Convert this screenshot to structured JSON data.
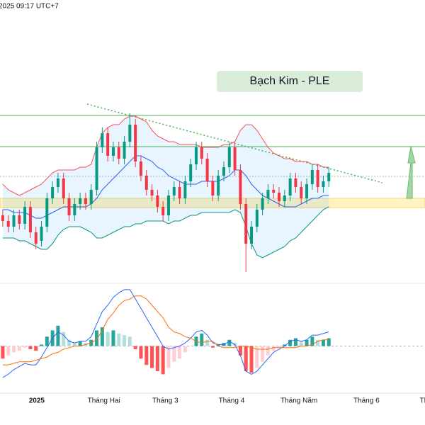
{
  "chart_data": [
    {
      "type": "candlestick",
      "title": "Bạch Kim - PLE",
      "timestamp": "2025 09:17 UTC+7",
      "xlim": [
        -0.5,
        76.4
      ],
      "xticks": [
        {
          "value": 6.15,
          "label": "2025"
        },
        {
          "value": 18.3,
          "label": "Tháng Hai"
        },
        {
          "value": 29.4,
          "label": "Tháng 3"
        },
        {
          "value": 41.4,
          "label": "Tháng 4"
        },
        {
          "value": 53.6,
          "label": "Tháng Năm"
        },
        {
          "value": 65.8,
          "label": "Tháng 6"
        },
        {
          "value": 76.2,
          "label": "Th"
        }
      ],
      "ylim": [
        0,
        100
      ],
      "up_color": "#089981",
      "down_color": "#f23645",
      "open": [
        24,
        22,
        20,
        24,
        21,
        27,
        18,
        15,
        20,
        30,
        34,
        37,
        30,
        24,
        28,
        30,
        28,
        33,
        48,
        53,
        45,
        48,
        44,
        50,
        56,
        43,
        38,
        33,
        31,
        27,
        24,
        31,
        34,
        30,
        36,
        42,
        48,
        44,
        36,
        31,
        38,
        41,
        48,
        40,
        28,
        14,
        20,
        26,
        30,
        33,
        32,
        29,
        31,
        37,
        34,
        30,
        35,
        40,
        34,
        36
      ],
      "high": [
        26,
        24,
        26,
        26,
        29,
        29,
        20,
        22,
        32,
        36,
        39,
        39,
        32,
        30,
        32,
        32,
        35,
        50,
        55,
        55,
        50,
        50,
        52,
        60,
        58,
        45,
        40,
        35,
        33,
        29,
        33,
        36,
        36,
        38,
        44,
        50,
        50,
        46,
        38,
        40,
        43,
        50,
        50,
        42,
        30,
        22,
        28,
        32,
        35,
        35,
        34,
        33,
        39,
        39,
        36,
        37,
        42,
        42,
        38,
        41
      ],
      "low": [
        20,
        18,
        18,
        19,
        19,
        16,
        12,
        13,
        18,
        28,
        32,
        28,
        22,
        22,
        26,
        26,
        26,
        31,
        46,
        43,
        43,
        42,
        42,
        48,
        41,
        36,
        31,
        29,
        25,
        22,
        22,
        29,
        28,
        28,
        34,
        40,
        42,
        34,
        29,
        29,
        36,
        39,
        38,
        26,
        4,
        12,
        18,
        24,
        28,
        30,
        27,
        27,
        29,
        32,
        28,
        28,
        33,
        32,
        32,
        34
      ],
      "close": [
        22,
        20,
        24,
        21,
        27,
        18,
        14,
        20,
        30,
        34,
        37,
        30,
        24,
        28,
        30,
        28,
        33,
        48,
        53,
        45,
        48,
        44,
        50,
        56,
        43,
        38,
        33,
        31,
        27,
        24,
        31,
        34,
        30,
        36,
        42,
        48,
        44,
        36,
        31,
        38,
        41,
        48,
        40,
        28,
        14,
        20,
        26,
        30,
        33,
        32,
        29,
        31,
        37,
        34,
        30,
        35,
        40,
        34,
        36,
        39
      ],
      "bands": {
        "upper": [
          35,
          33,
          32,
          31,
          32,
          33,
          34,
          35,
          37,
          39,
          40,
          40,
          40,
          40,
          41,
          41,
          42,
          48,
          53,
          55,
          56,
          56,
          58,
          59,
          59,
          58,
          57,
          54,
          52,
          51,
          50,
          50,
          49,
          49,
          49,
          49,
          48,
          48,
          48,
          48,
          49,
          49,
          50,
          54,
          56,
          56,
          54,
          51,
          48,
          46,
          45,
          44,
          44,
          43,
          43,
          43,
          42,
          42,
          41,
          41
        ],
        "middle": [
          26,
          26,
          25,
          25,
          25,
          24,
          23,
          23,
          24,
          25,
          26,
          27,
          27,
          27,
          27,
          27,
          28,
          30,
          33,
          35,
          37,
          39,
          41,
          43,
          45,
          45,
          44,
          43,
          41,
          40,
          38,
          37,
          36,
          35,
          35,
          35,
          36,
          36,
          36,
          36,
          37,
          38,
          40,
          40,
          38,
          35,
          33,
          31,
          30,
          29,
          28,
          27,
          27,
          27,
          28,
          29,
          30,
          30,
          31,
          31
        ],
        "lower": [
          16,
          16,
          16,
          15,
          15,
          14,
          13,
          12,
          12,
          14,
          17,
          19,
          20,
          20,
          20,
          19,
          18,
          16,
          16,
          17,
          18,
          19,
          20,
          20,
          21,
          21,
          22,
          22,
          22,
          22,
          21,
          22,
          22,
          23,
          24,
          24,
          25,
          25,
          25,
          25,
          25,
          25,
          26,
          25,
          20,
          14,
          10,
          9,
          10,
          11,
          12,
          13,
          15,
          16,
          18,
          20,
          22,
          24,
          26,
          27
        ]
      },
      "band_colors": {
        "upper": "#f7525f",
        "middle": "#2962ff",
        "lower": "#089981",
        "fill": "#2196f3"
      }
    },
    {
      "type": "macd",
      "ylim": [
        -30,
        40
      ],
      "macd": [
        -20,
        -18,
        -15,
        -13,
        -11,
        -12,
        -12,
        -7,
        -1,
        5,
        9,
        7,
        3,
        2,
        3,
        3,
        6,
        14,
        22,
        26,
        31,
        34,
        36,
        36,
        30,
        24,
        18,
        12,
        6,
        0,
        -2,
        -1,
        0,
        2,
        5,
        9,
        10,
        7,
        2,
        1,
        1,
        3,
        1,
        -6,
        -16,
        -18,
        -16,
        -12,
        -8,
        -4,
        -2,
        0,
        3,
        4,
        3,
        4,
        7,
        7,
        8,
        9
      ],
      "signal": [
        -12,
        -12,
        -11,
        -10,
        -10,
        -10,
        -9,
        -8,
        -7,
        -5,
        -4,
        -2,
        -1,
        0,
        0,
        1,
        2,
        4,
        10,
        17,
        21,
        26,
        29,
        30,
        32,
        32,
        30,
        26,
        22,
        18,
        12,
        9,
        8,
        6,
        5,
        3,
        2,
        3,
        3,
        0,
        -1,
        -1,
        -1,
        0,
        0,
        -1,
        -2,
        -2,
        -2,
        -1,
        -1,
        -1,
        -1,
        -1,
        0,
        0,
        1,
        3,
        4,
        4
      ],
      "histogram": [
        -8,
        -6,
        -4,
        -3,
        -1,
        -2,
        -3,
        1,
        6,
        10,
        13,
        9,
        4,
        2,
        3,
        2,
        4,
        10,
        12,
        9,
        10,
        8,
        7,
        6,
        -2,
        -8,
        -12,
        -14,
        -16,
        -18,
        -14,
        -10,
        -8,
        -4,
        0,
        6,
        8,
        4,
        -1,
        1,
        2,
        4,
        2,
        -6,
        -16,
        -17,
        -14,
        -10,
        -6,
        -3,
        -1,
        1,
        4,
        5,
        3,
        4,
        6,
        4,
        4,
        5
      ],
      "macd_color": "#2962ff",
      "signal_color": "#ff6d00",
      "hist_colors": {
        "up_rising": "#26a69a",
        "up_falling": "#b2dfdb",
        "down_falling": "#ff5252",
        "down_rising": "#ffcdd2"
      }
    }
  ]
}
